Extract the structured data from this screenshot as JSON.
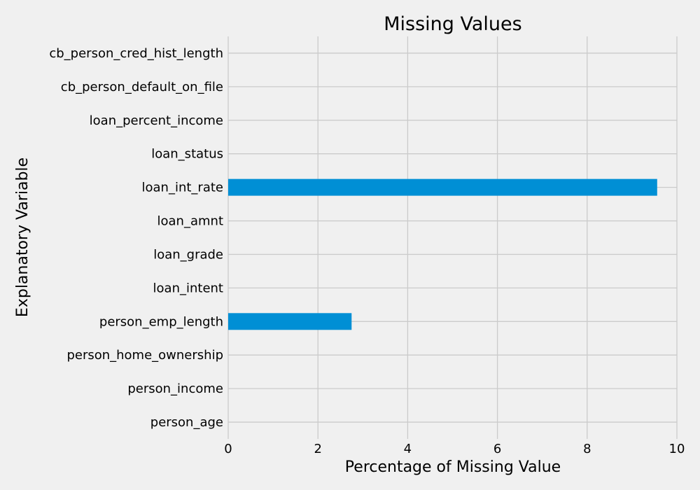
{
  "chart_data": {
    "type": "bar",
    "orientation": "horizontal",
    "title": "Missing Values",
    "xlabel": "Percentage of Missing Value",
    "ylabel": "Explanatory Variable",
    "categories": [
      "person_age",
      "person_income",
      "person_home_ownership",
      "person_emp_length",
      "loan_intent",
      "loan_grade",
      "loan_amnt",
      "loan_int_rate",
      "loan_status",
      "loan_percent_income",
      "cb_person_default_on_file",
      "cb_person_cred_hist_length"
    ],
    "values": [
      0,
      0,
      0,
      2.75,
      0,
      0,
      0,
      9.56,
      0,
      0,
      0,
      0
    ],
    "xlim": [
      0,
      10
    ],
    "xticks": [
      "0",
      "2",
      "4",
      "6",
      "8",
      "10"
    ],
    "grid": true,
    "legend": "none",
    "bar_color": "#008fd5",
    "background_color": "#f0f0f0",
    "grid_color": "#cbcbcb"
  }
}
